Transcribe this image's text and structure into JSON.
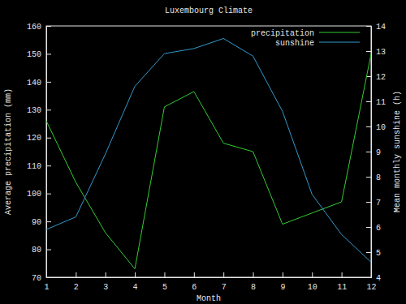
{
  "chart_data": {
    "type": "line",
    "title": "Luxembourg Climate",
    "x_label": "Month",
    "y_label": "Average precipitation (mm)",
    "y2_label": "Mean monthly sunshine (h)",
    "x": [
      1,
      2,
      3,
      4,
      5,
      6,
      7,
      8,
      9,
      10,
      11,
      12
    ],
    "series": [
      {
        "name": "precipitation",
        "color": "#33cc33",
        "line_style": "solid",
        "values": [
          126,
          104,
          86,
          73,
          131,
          136.5,
          118,
          115,
          89,
          93,
          97,
          150
        ]
      },
      {
        "name": "sunshine",
        "color": "#3399cc",
        "line_style": "solid",
        "axis": "y2",
        "values": [
          5.9,
          6.4,
          8.9,
          11.6,
          12.9,
          13.1,
          13.5,
          12.8,
          10.6,
          7.3,
          5.7,
          4.6
        ]
      }
    ],
    "xlim": [
      1,
      12
    ],
    "xticks": [
      1,
      2,
      3,
      4,
      5,
      6,
      7,
      8,
      9,
      10,
      11,
      12
    ],
    "ylim": [
      70,
      160
    ],
    "yticks": [
      70,
      80,
      90,
      100,
      110,
      120,
      130,
      140,
      150,
      160
    ],
    "y2lim": [
      4,
      14
    ],
    "y2ticks": [
      4,
      5,
      6,
      7,
      8,
      9,
      10,
      11,
      12,
      13,
      14
    ],
    "legend": "top-right",
    "grid": false
  }
}
